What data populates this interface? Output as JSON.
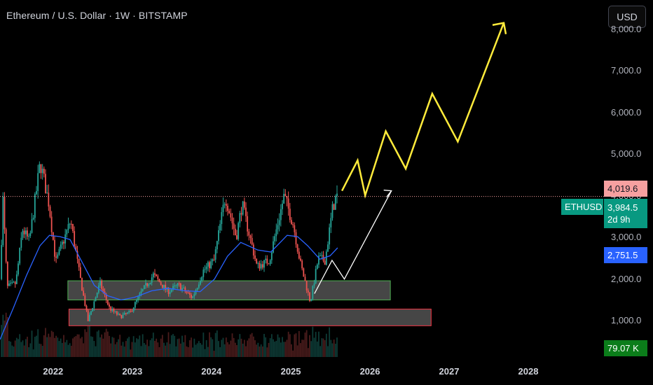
{
  "header": {
    "title": "Ethereum / U.S. Dollar · 1W · BITSTAMP",
    "currency_label": "USD"
  },
  "badges": {
    "symbol": "ETHUSD",
    "high_label": "4,019.6",
    "last_price_label": "3,984.5",
    "countdown_label": "2d 9h",
    "ma_label": "2,751.5",
    "volume_label": "79.07 K"
  },
  "colors": {
    "background": "#000000",
    "candle_up": "#26a69a",
    "candle_down": "#ef5350",
    "ma_line": "#2962ff",
    "projection_yellow": "#ffeb3b",
    "projection_white": "#ffffff",
    "support_box_border": "#4caf50",
    "lower_box_border": "#f23645",
    "last_price": "#089981",
    "high_badge": "#f7a0a0",
    "volume_badge": "#0b7d1a"
  },
  "chart_data": {
    "type": "candlestick",
    "title": "Ethereum / U.S. Dollar · 1W · BITSTAMP",
    "x_ticks": [
      "2022",
      "2023",
      "2024",
      "2025",
      "2026",
      "2027",
      "2028"
    ],
    "y_ticks": [
      "1,000.0",
      "2,000.0",
      "3,000.0",
      "4,000.0",
      "5,000.0",
      "6,000.0",
      "7,000.0",
      "8,000.0"
    ],
    "y_range": [
      130,
      8700
    ],
    "x_range": [
      "2021-05-01",
      "2028-12-15"
    ],
    "grid": false,
    "last_price": 3984.5,
    "recent_high": 4019.6,
    "moving_average_last": 2751.5,
    "volume_last": "79.07 K",
    "price_path": [
      [
        "2021-05-08",
        2000
      ],
      [
        "2021-05-22",
        3900
      ],
      [
        "2021-06-10",
        1800
      ],
      [
        "2021-07-20",
        1900
      ],
      [
        "2021-08-20",
        3200
      ],
      [
        "2021-09-20",
        2900
      ],
      [
        "2021-11-10",
        4800
      ],
      [
        "2021-12-20",
        3800
      ],
      [
        "2022-01-20",
        2400
      ],
      [
        "2022-03-30",
        3400
      ],
      [
        "2022-05-10",
        2100
      ],
      [
        "2022-06-18",
        1000
      ],
      [
        "2022-08-12",
        1900
      ],
      [
        "2022-09-25",
        1300
      ],
      [
        "2022-11-12",
        1100
      ],
      [
        "2022-12-30",
        1200
      ],
      [
        "2023-02-15",
        1650
      ],
      [
        "2023-04-15",
        2100
      ],
      [
        "2023-06-20",
        1700
      ],
      [
        "2023-08-10",
        1850
      ],
      [
        "2023-10-12",
        1550
      ],
      [
        "2023-12-01",
        2200
      ],
      [
        "2024-01-20",
        2450
      ],
      [
        "2024-03-12",
        4000
      ],
      [
        "2024-05-01",
        3000
      ],
      [
        "2024-05-28",
        3800
      ],
      [
        "2024-08-05",
        2300
      ],
      [
        "2024-10-01",
        2450
      ],
      [
        "2024-12-08",
        4000
      ],
      [
        "2025-01-20",
        3300
      ],
      [
        "2025-02-20",
        2400
      ],
      [
        "2025-04-08",
        1450
      ],
      [
        "2025-05-15",
        2500
      ],
      [
        "2025-06-15",
        2450
      ],
      [
        "2025-07-20",
        3700
      ],
      [
        "2025-08-05",
        3984
      ]
    ],
    "moving_average": [
      [
        "2021-05-01",
        550
      ],
      [
        "2021-07-01",
        1300
      ],
      [
        "2021-09-01",
        2100
      ],
      [
        "2021-11-01",
        2800
      ],
      [
        "2021-12-15",
        3050
      ],
      [
        "2022-02-01",
        3020
      ],
      [
        "2022-03-20",
        2950
      ],
      [
        "2022-05-10",
        2450
      ],
      [
        "2022-07-10",
        1850
      ],
      [
        "2022-09-10",
        1600
      ],
      [
        "2022-11-10",
        1500
      ],
      [
        "2023-01-10",
        1560
      ],
      [
        "2023-04-01",
        1720
      ],
      [
        "2023-06-15",
        1780
      ],
      [
        "2023-09-01",
        1720
      ],
      [
        "2023-11-10",
        1700
      ],
      [
        "2024-01-15",
        2000
      ],
      [
        "2024-03-15",
        2550
      ],
      [
        "2024-05-15",
        2880
      ],
      [
        "2024-08-01",
        2700
      ],
      [
        "2024-10-01",
        2650
      ],
      [
        "2024-12-15",
        3050
      ],
      [
        "2025-02-01",
        3020
      ],
      [
        "2025-03-20",
        2800
      ],
      [
        "2025-05-15",
        2480
      ],
      [
        "2025-07-01",
        2560
      ],
      [
        "2025-08-05",
        2751.5
      ]
    ],
    "projection_white": [
      [
        "2025-04-20",
        1650
      ],
      [
        "2025-07-10",
        2450
      ],
      [
        "2025-09-05",
        2000
      ],
      [
        "2026-04-10",
        4120
      ]
    ],
    "projection_yellow": [
      [
        "2025-08-25",
        4120
      ],
      [
        "2025-11-05",
        4850
      ],
      [
        "2025-12-10",
        4010
      ],
      [
        "2026-03-15",
        5550
      ],
      [
        "2026-06-15",
        4650
      ],
      [
        "2026-10-15",
        6450
      ],
      [
        "2027-02-10",
        5300
      ],
      [
        "2027-09-10",
        8150
      ]
    ],
    "boxes": [
      {
        "x_from": "2022-03-10",
        "x_to": "2026-04-05",
        "y_from": 1500,
        "y_to": 1960,
        "style": "support"
      },
      {
        "x_from": "2022-03-15",
        "x_to": "2026-10-10",
        "y_from": 880,
        "y_to": 1280,
        "style": "lower"
      }
    ]
  }
}
